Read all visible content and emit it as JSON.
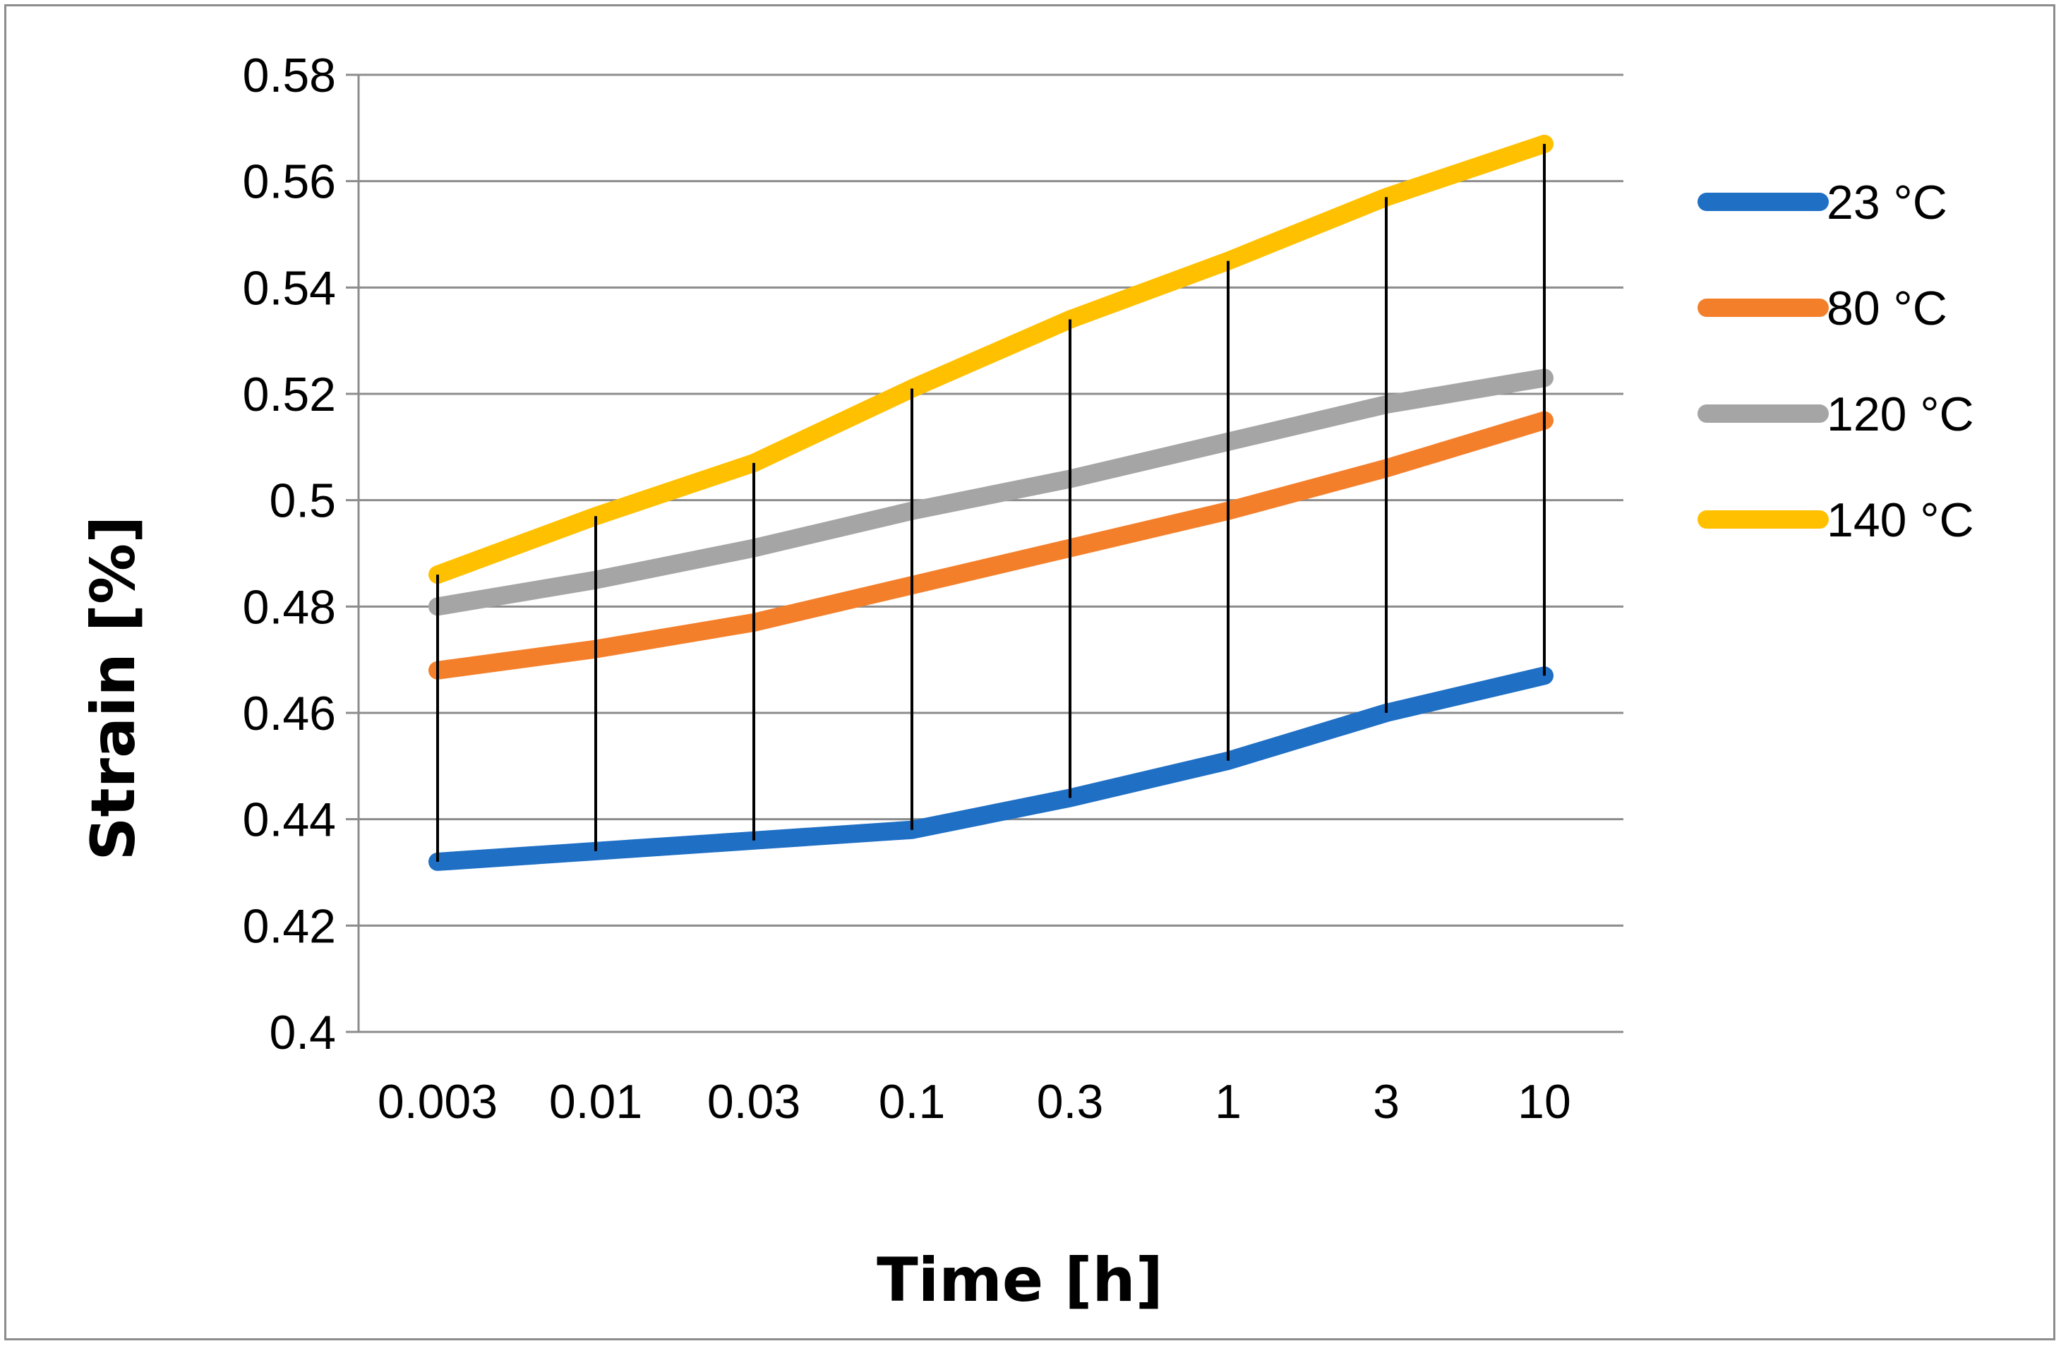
{
  "chart_data": {
    "type": "line",
    "title": "",
    "xlabel": "Time [h]",
    "ylabel": "Strain [%]",
    "categories": [
      "0.003",
      "0.01",
      "0.03",
      "0.1",
      "0.3",
      "1",
      "3",
      "10"
    ],
    "ylim": [
      0.4,
      0.58
    ],
    "yticks": [
      "0.4",
      "0.42",
      "0.44",
      "0.46",
      "0.48",
      "0.5",
      "0.52",
      "0.54",
      "0.56",
      "0.58"
    ],
    "grid": true,
    "legend_position": "right",
    "series": [
      {
        "name": "23 °C",
        "color": "#1f6fc5",
        "values": [
          0.432,
          0.434,
          0.436,
          0.438,
          0.444,
          0.451,
          0.46,
          0.467
        ]
      },
      {
        "name": "80 °C",
        "color": "#f47f2b",
        "values": [
          0.468,
          0.472,
          0.477,
          0.484,
          0.491,
          0.498,
          0.506,
          0.515
        ]
      },
      {
        "name": "120 °C",
        "color": "#a5a5a5",
        "values": [
          0.48,
          0.485,
          0.491,
          0.498,
          0.504,
          0.511,
          0.518,
          0.523
        ]
      },
      {
        "name": "140 °C",
        "color": "#ffc000",
        "values": [
          0.486,
          0.497,
          0.507,
          0.521,
          0.534,
          0.545,
          0.557,
          0.567
        ]
      }
    ],
    "error_bars": {
      "color": "#000000",
      "low_series": "23 °C",
      "high_series": "140 °C"
    }
  }
}
